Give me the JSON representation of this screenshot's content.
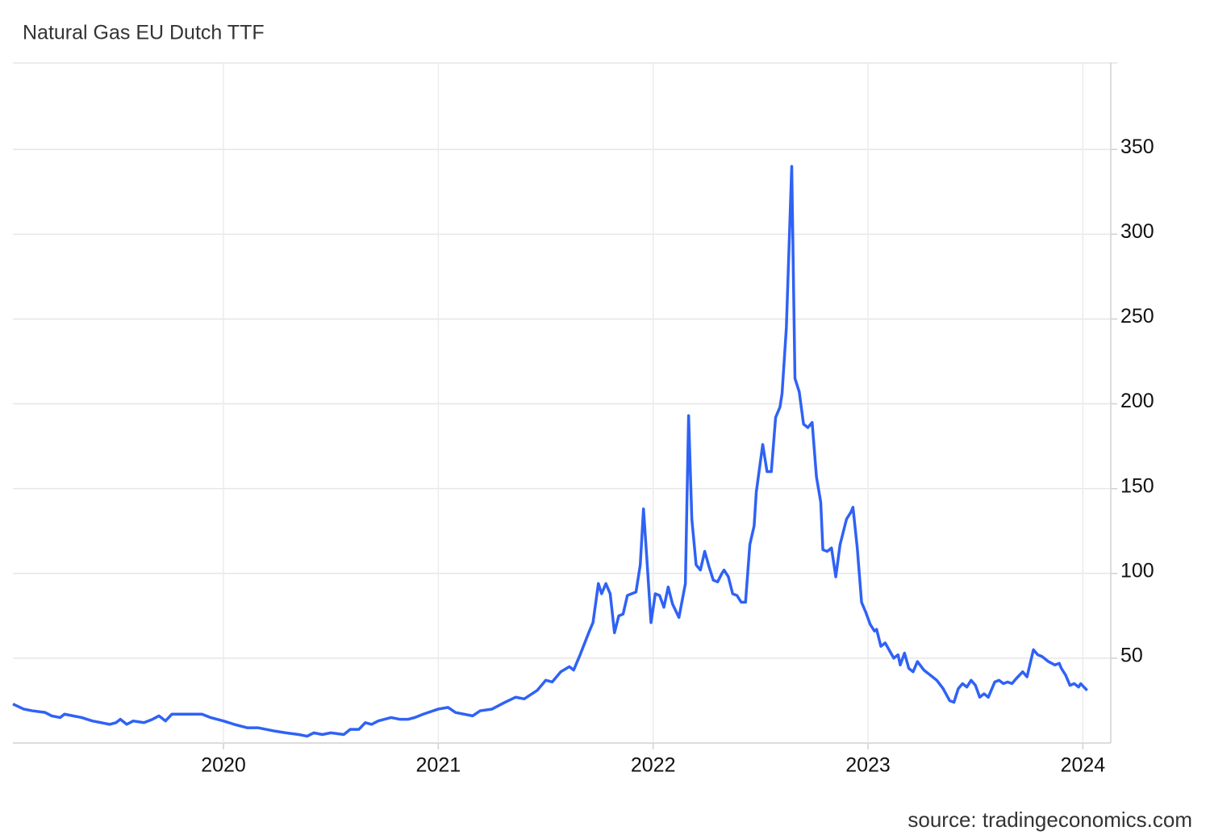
{
  "chart_data": {
    "type": "line",
    "title": "Natural Gas EU Dutch TTF",
    "source": "source: tradingeconomics.com",
    "color": "#2f62f5",
    "grid": true,
    "xlim": [
      2019.02,
      2024.13
    ],
    "xticks": [
      2020,
      2021,
      2022,
      2023,
      2024
    ],
    "ylim": [
      0,
      401
    ],
    "yticks": [
      50,
      100,
      150,
      200,
      250,
      300,
      350
    ],
    "x": [
      2019.02,
      2019.07,
      2019.11,
      2019.17,
      2019.2,
      2019.24,
      2019.26,
      2019.3,
      2019.34,
      2019.39,
      2019.43,
      2019.47,
      2019.5,
      2019.52,
      2019.55,
      2019.58,
      2019.63,
      2019.67,
      2019.7,
      2019.73,
      2019.76,
      2019.8,
      2019.84,
      2019.9,
      2019.94,
      2020.0,
      2020.05,
      2020.11,
      2020.16,
      2020.2,
      2020.24,
      2020.29,
      2020.35,
      2020.39,
      2020.42,
      2020.46,
      2020.5,
      2020.56,
      2020.59,
      2020.63,
      2020.66,
      2020.69,
      2020.72,
      2020.78,
      2020.82,
      2020.86,
      2020.89,
      2020.93,
      2021.0,
      2021.045,
      2021.08,
      2021.16,
      2021.195,
      2021.25,
      2021.31,
      2021.36,
      2021.4,
      2021.46,
      2021.5,
      2021.53,
      2021.57,
      2021.61,
      2021.63,
      2021.66,
      2021.7,
      2021.72,
      2021.745,
      2021.76,
      2021.78,
      2021.8,
      2021.82,
      2021.84,
      2021.86,
      2021.88,
      2021.9,
      2021.92,
      2021.94,
      2021.955,
      2021.97,
      2021.99,
      2022.01,
      2022.03,
      2022.05,
      2022.07,
      2022.09,
      2022.12,
      2022.15,
      2022.165,
      2022.18,
      2022.2,
      2022.22,
      2022.24,
      2022.26,
      2022.28,
      2022.3,
      2022.32,
      2022.33,
      2022.35,
      2022.37,
      2022.39,
      2022.41,
      2022.43,
      2022.45,
      2022.47,
      2022.48,
      2022.51,
      2022.53,
      2022.55,
      2022.57,
      2022.59,
      2022.6,
      2022.62,
      2022.645,
      2022.66,
      2022.68,
      2022.7,
      2022.72,
      2022.74,
      2022.76,
      2022.78,
      2022.79,
      2022.81,
      2022.83,
      2022.85,
      2022.87,
      2022.9,
      2022.92,
      2022.93,
      2022.95,
      2022.97,
      2022.99,
      2023.01,
      2023.03,
      2023.04,
      2023.06,
      2023.08,
      2023.12,
      2023.14,
      2023.15,
      2023.17,
      2023.19,
      2023.21,
      2023.23,
      2023.26,
      2023.29,
      2023.32,
      2023.35,
      2023.38,
      2023.4,
      2023.42,
      2023.44,
      2023.46,
      2023.48,
      2023.5,
      2023.52,
      2023.54,
      2023.56,
      2023.57,
      2023.59,
      2023.61,
      2023.63,
      2023.65,
      2023.67,
      2023.69,
      2023.72,
      2023.74,
      2023.77,
      2023.79,
      2023.81,
      2023.84,
      2023.87,
      2023.89,
      2023.9,
      2023.92,
      2023.94,
      2023.96,
      2023.98,
      2023.99,
      2024.02
    ],
    "values": [
      23,
      20,
      19,
      18,
      16,
      15,
      17,
      16,
      15,
      13,
      12,
      11,
      12,
      14,
      11,
      13,
      12,
      14,
      16,
      13,
      17,
      17,
      17,
      17,
      15,
      13,
      11,
      9,
      9,
      8,
      7,
      6,
      5,
      4,
      6,
      5,
      6,
      5,
      8,
      8,
      12,
      11,
      13,
      15,
      14,
      14,
      15,
      17,
      20,
      21,
      18,
      16,
      19,
      20,
      24,
      27,
      26,
      31,
      37,
      36,
      42,
      45,
      43,
      52,
      65,
      71,
      94,
      88,
      94,
      88,
      65,
      75,
      76,
      87,
      88,
      89,
      105,
      138,
      110,
      71,
      88,
      87,
      80,
      92,
      82,
      74,
      94,
      193,
      132,
      105,
      102,
      113,
      104,
      96,
      95,
      100,
      102,
      98,
      88,
      87,
      83,
      83,
      117,
      128,
      148,
      176,
      160,
      160,
      192,
      198,
      206,
      245,
      340,
      215,
      207,
      188,
      186,
      189,
      157,
      142,
      114,
      113,
      115,
      98,
      117,
      132,
      136,
      139,
      115,
      83,
      77,
      70,
      66,
      67,
      57,
      59,
      50,
      52,
      46,
      53,
      44,
      42,
      48,
      43,
      40,
      37,
      32,
      25,
      24,
      32,
      35,
      33,
      37,
      34,
      27,
      29,
      27,
      30,
      36,
      37,
      35,
      36,
      35,
      38,
      42,
      39,
      55,
      52,
      51,
      48,
      46,
      47,
      44,
      40,
      34,
      35,
      33,
      35,
      31
    ]
  }
}
